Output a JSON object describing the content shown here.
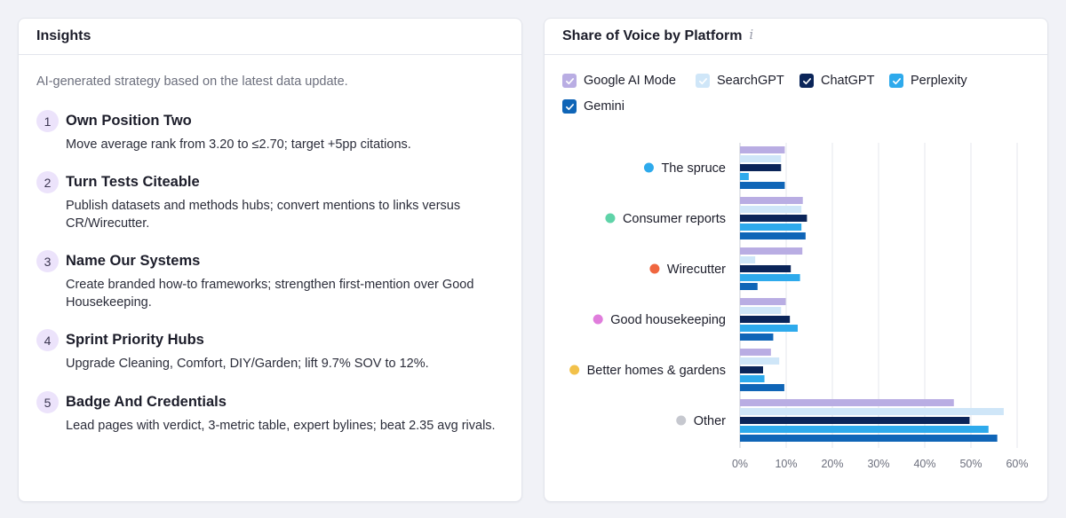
{
  "insights": {
    "title": "Insights",
    "subtitle": "AI-generated strategy based on the latest data update.",
    "items": [
      {
        "num": "1",
        "title": "Own Position Two",
        "desc": "Move average rank from 3.20 to ≤2.70; target +5pp citations."
      },
      {
        "num": "2",
        "title": "Turn Tests Citeable",
        "desc": "Publish datasets and methods hubs; convert mentions to links versus CR/Wirecutter."
      },
      {
        "num": "3",
        "title": "Name Our Systems",
        "desc": "Create branded how-to frameworks; strengthen first-mention over Good Housekeeping."
      },
      {
        "num": "4",
        "title": "Sprint Priority Hubs",
        "desc": "Upgrade Cleaning, Comfort, DIY/Garden; lift 9.7% SOV to 12%."
      },
      {
        "num": "5",
        "title": "Badge And Credentials",
        "desc": "Lead pages with verdict, 3-metric table, expert bylines; beat 2.35 avg rivals."
      }
    ]
  },
  "sov": {
    "title": "Share of Voice by Platform",
    "info_icon": "info-icon",
    "legend": [
      {
        "label": "Google AI Mode",
        "color": "#b9ade3",
        "checked": true
      },
      {
        "label": "SearchGPT",
        "color": "#cfe6f8",
        "checked": true
      },
      {
        "label": "ChatGPT",
        "color": "#0b2559",
        "checked": true
      },
      {
        "label": "Perplexity",
        "color": "#2eaaec",
        "checked": true
      },
      {
        "label": "Gemini",
        "color": "#0f65b7",
        "checked": true
      }
    ]
  },
  "chart_data": {
    "type": "bar",
    "orientation": "horizontal",
    "title": "Share of Voice by Platform",
    "categories": [
      {
        "name": "The spruce",
        "dot_color": "#2eaaec"
      },
      {
        "name": "Consumer reports",
        "dot_color": "#5fd3a8"
      },
      {
        "name": "Wirecutter",
        "dot_color": "#f0663f"
      },
      {
        "name": "Good housekeeping",
        "dot_color": "#e07ddc"
      },
      {
        "name": "Better homes & gardens",
        "dot_color": "#f2c14a"
      },
      {
        "name": "Other",
        "dot_color": "#c6c8cf"
      }
    ],
    "series": [
      {
        "name": "Google AI Mode",
        "color": "#b9ade3",
        "values": [
          9.7,
          13.6,
          13.5,
          9.9,
          6.7,
          46.3
        ]
      },
      {
        "name": "SearchGPT",
        "color": "#cfe6f8",
        "values": [
          8.9,
          13.3,
          3.3,
          8.9,
          8.5,
          57.1
        ]
      },
      {
        "name": "ChatGPT",
        "color": "#0b2559",
        "values": [
          8.9,
          14.5,
          11.0,
          10.8,
          5.0,
          49.7
        ]
      },
      {
        "name": "Perplexity",
        "color": "#2eaaec",
        "values": [
          1.9,
          13.3,
          13.0,
          12.5,
          5.3,
          53.8
        ]
      },
      {
        "name": "Gemini",
        "color": "#0f65b7",
        "values": [
          9.7,
          14.2,
          3.8,
          7.2,
          9.6,
          55.7
        ]
      }
    ],
    "xlim": [
      0,
      60
    ],
    "xticks": [
      "0%",
      "10%",
      "20%",
      "30%",
      "40%",
      "50%",
      "60%"
    ],
    "grid": true,
    "legend_placement": "top"
  }
}
